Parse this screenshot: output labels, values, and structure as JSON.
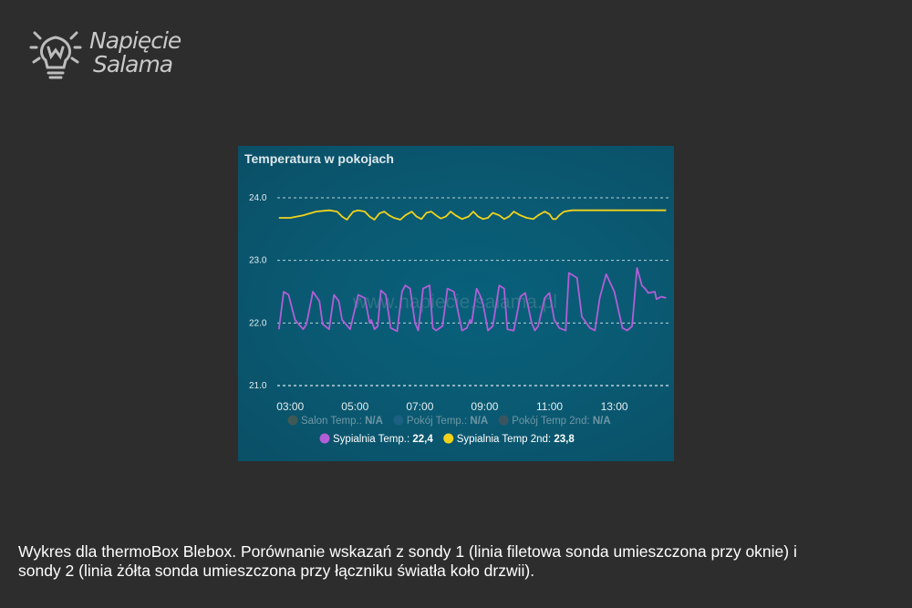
{
  "logo": {
    "line1": "Napięcie",
    "line2": "Salama"
  },
  "card": {
    "title": "Temperatura w pokojach"
  },
  "watermark": "www.napiecie.salama.pl",
  "caption": "Wykres dla thermoBox Blebox. Porównanie wskazań z sondy 1 (linia filetowa sonda umieszczona przy oknie) i sondy 2 (linia żółta sonda umieszczona przy łączniku światła koło drzwii).",
  "chart_data": {
    "type": "line",
    "title": "Temperatura w pokojach",
    "xlim": [
      2.6,
      14.7
    ],
    "ylim": [
      21.0,
      24.0
    ],
    "x_ticks": [
      "03:00",
      "05:00",
      "07:00",
      "09:00",
      "11:00",
      "13:00"
    ],
    "x_tick_values": [
      3,
      5,
      7,
      9,
      11,
      13
    ],
    "y_ticks": [
      "24.0",
      "23.0",
      "22.0",
      "21.0"
    ],
    "y_tick_values": [
      24,
      23,
      22,
      21
    ],
    "grid": true,
    "legend": [
      {
        "name": "Salon Temp.",
        "value": "N/A",
        "color": "#3f5a55",
        "active": false
      },
      {
        "name": "Pokój Temp.",
        "value": "N/A",
        "color": "#1c5f80",
        "active": false
      },
      {
        "name": "Pokój Temp 2nd",
        "value": "N/A",
        "color": "#3a5560",
        "active": false
      },
      {
        "name": "Sypialnia Temp.",
        "value": "22,4",
        "color": "#b25ed6",
        "active": true
      },
      {
        "name": "Sypialnia Temp 2nd",
        "value": "23,8",
        "color": "#f2d31b",
        "active": true
      }
    ],
    "series": [
      {
        "name": "Sypialnia Temp.",
        "color": "#b25ed6",
        "x": [
          2.65,
          2.8,
          2.95,
          3.15,
          3.4,
          3.5,
          3.7,
          3.9,
          4.0,
          4.2,
          4.35,
          4.5,
          4.6,
          4.85,
          5.1,
          5.3,
          5.45,
          5.5,
          5.6,
          5.7,
          5.8,
          5.95,
          6.1,
          6.3,
          6.45,
          6.55,
          6.7,
          6.85,
          6.95,
          7.1,
          7.3,
          7.4,
          7.5,
          7.7,
          7.85,
          8.05,
          8.3,
          8.45,
          8.55,
          8.6,
          8.75,
          8.85,
          8.95,
          9.1,
          9.25,
          9.45,
          9.6,
          9.7,
          9.9,
          10.1,
          10.25,
          10.45,
          10.55,
          10.65,
          10.85,
          11.0,
          11.15,
          11.3,
          11.5,
          11.6,
          11.85,
          12.0,
          12.25,
          12.4,
          12.55,
          12.75,
          13.0,
          13.25,
          13.4,
          13.55,
          13.7,
          13.85,
          13.95,
          14.05,
          14.25,
          14.3,
          14.45,
          14.6
        ],
        "y": [
          21.9,
          22.5,
          22.45,
          22.05,
          21.9,
          21.98,
          22.5,
          22.35,
          21.98,
          21.9,
          22.45,
          22.35,
          22.05,
          21.9,
          22.45,
          22.4,
          22.0,
          22.05,
          21.9,
          21.95,
          22.52,
          22.45,
          21.92,
          21.87,
          22.5,
          22.6,
          22.55,
          22.0,
          21.88,
          22.55,
          22.6,
          21.92,
          21.88,
          21.95,
          22.55,
          22.5,
          21.88,
          21.92,
          22.05,
          22.0,
          22.55,
          22.45,
          22.3,
          21.88,
          21.95,
          22.6,
          22.55,
          21.9,
          21.88,
          22.42,
          22.48,
          22.0,
          21.88,
          21.95,
          22.4,
          22.48,
          22.05,
          21.92,
          21.88,
          22.8,
          22.72,
          22.1,
          21.92,
          21.88,
          22.4,
          22.78,
          22.5,
          21.92,
          21.88,
          21.95,
          22.88,
          22.6,
          22.55,
          22.48,
          22.5,
          22.38,
          22.42,
          22.4
        ]
      },
      {
        "name": "Sypialnia Temp 2nd",
        "color": "#f2d31b",
        "x": [
          2.65,
          3.0,
          3.4,
          3.8,
          4.2,
          4.45,
          4.6,
          4.75,
          4.85,
          4.95,
          5.1,
          5.3,
          5.45,
          5.6,
          5.75,
          5.9,
          6.05,
          6.2,
          6.4,
          6.55,
          6.75,
          6.9,
          7.05,
          7.2,
          7.35,
          7.5,
          7.65,
          7.8,
          7.95,
          8.1,
          8.3,
          8.5,
          8.65,
          8.8,
          8.95,
          9.1,
          9.25,
          9.45,
          9.6,
          9.75,
          9.9,
          10.1,
          10.3,
          10.5,
          10.65,
          10.85,
          11.0,
          11.1,
          11.2,
          11.3,
          11.45,
          11.7,
          12.0,
          13.0,
          14.0,
          14.6
        ],
        "y": [
          23.68,
          23.68,
          23.72,
          23.78,
          23.8,
          23.78,
          23.7,
          23.65,
          23.72,
          23.78,
          23.8,
          23.78,
          23.7,
          23.65,
          23.75,
          23.78,
          23.72,
          23.68,
          23.65,
          23.72,
          23.78,
          23.7,
          23.66,
          23.76,
          23.78,
          23.72,
          23.67,
          23.7,
          23.78,
          23.72,
          23.66,
          23.7,
          23.78,
          23.7,
          23.66,
          23.68,
          23.76,
          23.72,
          23.66,
          23.7,
          23.78,
          23.72,
          23.68,
          23.66,
          23.72,
          23.78,
          23.74,
          23.66,
          23.66,
          23.72,
          23.78,
          23.8,
          23.8,
          23.8,
          23.8,
          23.8
        ]
      }
    ]
  }
}
